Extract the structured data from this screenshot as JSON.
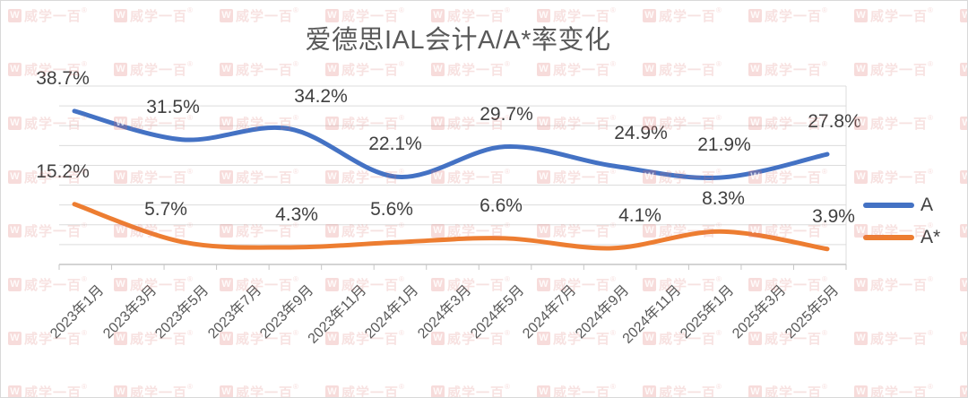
{
  "chart_data": {
    "type": "line",
    "title": "爱德思IAL会计A/A*率变化",
    "smooth": true,
    "grid": true,
    "legend_position": "right",
    "data_labels": true,
    "ylim": [
      0,
      45
    ],
    "gridline_step_pct": 5,
    "categories": [
      "2023年1月",
      "2023年3月",
      "2023年5月",
      "2023年7月",
      "2023年9月",
      "2023年11月",
      "2024年1月",
      "2024年3月",
      "2024年5月",
      "2024年7月",
      "2024年9月",
      "2024年11月",
      "2025年1月",
      "2025年3月",
      "2025年5月"
    ],
    "data_point_categories": [
      "2023年1月",
      "2023年5月",
      "2023年9月",
      "2024年1月",
      "2024年5月",
      "2024年9月",
      "2025年1月",
      "2025年5月"
    ],
    "series": [
      {
        "name": "A",
        "color": "#4472C4",
        "values": [
          38.7,
          31.5,
          34.2,
          22.1,
          29.7,
          24.9,
          21.9,
          27.8
        ]
      },
      {
        "name": "A*",
        "color": "#ED7D31",
        "values": [
          15.2,
          5.7,
          4.3,
          5.6,
          6.6,
          4.1,
          8.3,
          3.9
        ]
      }
    ],
    "colors": {
      "gridline": "#dcdcdc",
      "axis_line": "#c6c6c6",
      "title_text": "#595959",
      "label_text": "#404040",
      "watermark": "#DE7471"
    }
  },
  "watermark": {
    "logo_letter": "W",
    "text": "威学一百",
    "registered": "®"
  }
}
